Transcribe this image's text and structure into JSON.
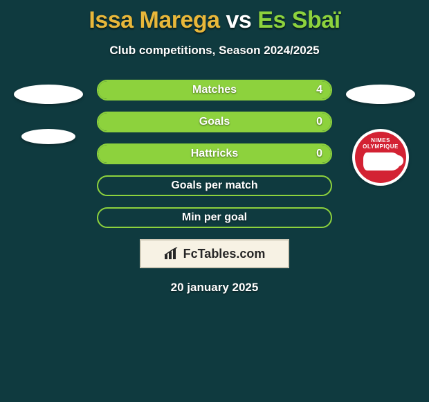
{
  "background_color": "#0f3a3f",
  "title": {
    "text_left": "Issa Marega",
    "vs": " vs ",
    "text_right": "Es Sbaï",
    "color_left": "#e8b73a",
    "color_vs": "#ffffff",
    "color_right": "#8dd23d",
    "fontsize": 34
  },
  "subtitle": "Club competitions, Season 2024/2025",
  "players": {
    "left_color": "#e8b73a",
    "right_color": "#8dd23d"
  },
  "crest": {
    "text": "NIMES OLYMPIQUE",
    "bg": "#d32233",
    "text_color": "#ffffff"
  },
  "stats": {
    "bar_border_radius": 15,
    "label_fontsize": 16,
    "rows": [
      {
        "label": "Matches",
        "left": "",
        "right": "4",
        "fill_pct": 100,
        "fill_side": "right"
      },
      {
        "label": "Goals",
        "left": "",
        "right": "0",
        "fill_pct": 100,
        "fill_side": "right"
      },
      {
        "label": "Hattricks",
        "left": "",
        "right": "0",
        "fill_pct": 100,
        "fill_side": "right"
      },
      {
        "label": "Goals per match",
        "left": "",
        "right": "",
        "fill_pct": 0,
        "fill_side": "none"
      },
      {
        "label": "Min per goal",
        "left": "",
        "right": "",
        "fill_pct": 0,
        "fill_side": "none"
      }
    ]
  },
  "watermark": {
    "text": "FcTables.com",
    "bg": "#f7f2e4",
    "border": "#cfcab8",
    "color": "#262626"
  },
  "date": "20 january 2025"
}
